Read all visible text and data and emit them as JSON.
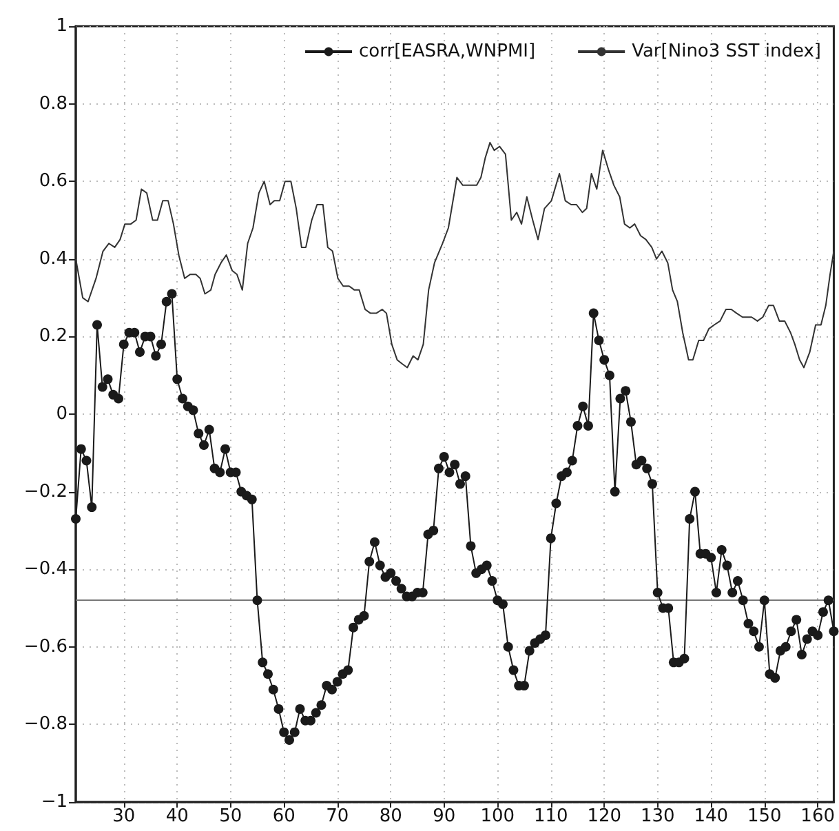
{
  "chart_data": {
    "type": "line",
    "x": [
      21,
      22,
      23,
      24,
      25,
      26,
      27,
      28,
      29,
      30,
      31,
      32,
      33,
      34,
      35,
      36,
      37,
      38,
      39,
      40,
      41,
      42,
      43,
      44,
      45,
      46,
      47,
      48,
      49,
      50,
      51,
      52,
      53,
      54,
      55,
      56,
      57,
      58,
      59,
      60,
      61,
      62,
      63,
      64,
      65,
      66,
      67,
      68,
      69,
      70,
      71,
      72,
      73,
      74,
      75,
      76,
      77,
      78,
      79,
      80,
      81,
      82,
      83,
      84,
      85,
      86,
      87,
      88,
      89,
      90,
      91,
      92,
      93,
      94,
      95,
      96,
      97,
      98,
      99,
      100,
      101,
      102,
      103,
      104,
      105,
      106,
      107,
      108,
      109,
      110,
      111,
      112,
      113,
      114,
      115,
      116,
      117,
      118,
      119,
      120,
      121,
      122,
      123,
      124,
      125,
      126,
      127,
      128,
      129,
      130,
      131,
      132,
      133,
      134,
      135,
      136,
      137,
      138,
      139,
      140,
      141,
      142,
      143,
      144,
      145,
      146,
      147,
      148,
      149,
      150,
      151,
      152,
      153,
      154,
      155,
      156,
      157,
      158,
      159,
      160,
      161,
      162,
      163
    ],
    "series": [
      {
        "name": "corr[EASRA,WNPMI]",
        "color": "#1a1a1a",
        "marker": "circle",
        "values": [
          -0.27,
          -0.09,
          -0.12,
          -0.24,
          0.23,
          0.07,
          0.09,
          0.05,
          0.04,
          0.18,
          0.21,
          0.21,
          0.16,
          0.2,
          0.2,
          0.15,
          0.18,
          0.29,
          0.31,
          0.09,
          0.04,
          0.02,
          0.01,
          -0.05,
          -0.08,
          -0.04,
          -0.14,
          -0.15,
          -0.09,
          -0.15,
          -0.15,
          -0.2,
          -0.21,
          -0.22,
          -0.48,
          -0.64,
          -0.67,
          -0.71,
          -0.76,
          -0.82,
          -0.84,
          -0.82,
          -0.76,
          -0.79,
          -0.79,
          -0.77,
          -0.75,
          -0.7,
          -0.71,
          -0.69,
          -0.67,
          -0.66,
          -0.55,
          -0.53,
          -0.52,
          -0.38,
          -0.33,
          -0.39,
          -0.42,
          -0.41,
          -0.43,
          -0.45,
          -0.47,
          -0.47,
          -0.46,
          -0.46,
          -0.31,
          -0.3,
          -0.14,
          -0.11,
          -0.15,
          -0.13,
          -0.18,
          -0.16,
          -0.34,
          -0.41,
          -0.4,
          -0.39,
          -0.43,
          -0.48,
          -0.49,
          -0.6,
          -0.66,
          -0.7,
          -0.7,
          -0.61,
          -0.59,
          -0.58,
          -0.57,
          -0.32,
          -0.23,
          -0.16,
          -0.15,
          -0.12,
          -0.03,
          0.02,
          -0.03,
          0.26,
          0.19,
          0.14,
          0.1,
          -0.2,
          0.04,
          0.06,
          -0.02,
          -0.13,
          -0.12,
          -0.14,
          -0.18,
          -0.46,
          -0.5,
          -0.5,
          -0.64,
          -0.64,
          -0.63,
          -0.27,
          -0.2,
          -0.36,
          -0.36,
          -0.37,
          -0.46,
          -0.35,
          -0.39,
          -0.46,
          -0.43,
          -0.48,
          -0.54,
          -0.56,
          -0.6,
          -0.48,
          -0.67,
          -0.68,
          -0.61,
          -0.6,
          -0.56,
          -0.53,
          -0.62,
          -0.58,
          -0.56,
          -0.57,
          -0.51,
          -0.48,
          -0.56
        ]
      },
      {
        "name": "Var[Nino3 SST index]",
        "color": "#333333",
        "marker": "none",
        "x": [
          21,
          22.3,
          23.3,
          24.8,
          26.1,
          27.2,
          28.3,
          29.3,
          30.2,
          31.3,
          32.3,
          33.3,
          34.3,
          35.4,
          36.3,
          37.3,
          38.3,
          39.3,
          40.3,
          41.4,
          42.4,
          43.5,
          44.3,
          45.2,
          46.3,
          47.1,
          48.2,
          49.2,
          50.3,
          51.2,
          52.2,
          53.2,
          54.2,
          55.3,
          56.3,
          57.4,
          58.2,
          59.2,
          60.2,
          61.3,
          62.3,
          63.3,
          64.1,
          65.2,
          66.2,
          67.3,
          68.2,
          69.1,
          70.1,
          71.1,
          72.2,
          73.2,
          74.1,
          75.2,
          76.2,
          77.3,
          78.4,
          79.2,
          80.2,
          81.2,
          82.1,
          83.1,
          84.2,
          85.1,
          86.1,
          87.1,
          88.2,
          89.7,
          90.8,
          92.4,
          93.5,
          94.8,
          96.1,
          96.9,
          97.7,
          98.6,
          99.4,
          100.4,
          101.5,
          102.6,
          103.6,
          104.5,
          105.5,
          106.6,
          107.6,
          108.8,
          110.1,
          111.6,
          112.7,
          113.8,
          114.8,
          115.9,
          116.7,
          117.6,
          118.6,
          119.7,
          120.8,
          121.8,
          122.9,
          123.8,
          124.8,
          125.7,
          126.8,
          127.8,
          128.9,
          129.8,
          130.8,
          131.9,
          132.8,
          133.7,
          134.7,
          135.8,
          136.6,
          137.7,
          138.6,
          139.6,
          140.6,
          141.7,
          142.8,
          143.8,
          144.8,
          145.9,
          147.6,
          148.7,
          149.7,
          150.8,
          151.7,
          152.8,
          153.8,
          154.9,
          155.7,
          156.6,
          157.4,
          158.5,
          159.6,
          160.6,
          161.5,
          162.3,
          163
        ],
        "values": [
          0.4,
          0.3,
          0.29,
          0.35,
          0.42,
          0.44,
          0.43,
          0.45,
          0.49,
          0.49,
          0.5,
          0.58,
          0.57,
          0.5,
          0.5,
          0.55,
          0.55,
          0.49,
          0.41,
          0.35,
          0.36,
          0.36,
          0.35,
          0.31,
          0.32,
          0.36,
          0.39,
          0.41,
          0.37,
          0.36,
          0.32,
          0.44,
          0.48,
          0.57,
          0.6,
          0.54,
          0.55,
          0.55,
          0.6,
          0.6,
          0.53,
          0.43,
          0.43,
          0.5,
          0.54,
          0.54,
          0.43,
          0.42,
          0.35,
          0.33,
          0.33,
          0.32,
          0.32,
          0.27,
          0.26,
          0.26,
          0.27,
          0.26,
          0.18,
          0.14,
          0.13,
          0.12,
          0.15,
          0.14,
          0.18,
          0.32,
          0.39,
          0.44,
          0.48,
          0.61,
          0.59,
          0.59,
          0.59,
          0.61,
          0.66,
          0.7,
          0.68,
          0.69,
          0.67,
          0.5,
          0.52,
          0.49,
          0.56,
          0.5,
          0.45,
          0.53,
          0.55,
          0.62,
          0.55,
          0.54,
          0.54,
          0.52,
          0.53,
          0.62,
          0.58,
          0.68,
          0.63,
          0.59,
          0.56,
          0.49,
          0.48,
          0.49,
          0.46,
          0.45,
          0.43,
          0.4,
          0.42,
          0.39,
          0.32,
          0.29,
          0.21,
          0.14,
          0.14,
          0.19,
          0.19,
          0.22,
          0.23,
          0.24,
          0.27,
          0.27,
          0.26,
          0.25,
          0.25,
          0.24,
          0.25,
          0.28,
          0.28,
          0.24,
          0.24,
          0.21,
          0.18,
          0.14,
          0.12,
          0.16,
          0.23,
          0.23,
          0.28,
          0.36,
          0.42
        ]
      }
    ],
    "xlim": [
      21,
      163
    ],
    "xticks": [
      30,
      40,
      50,
      60,
      70,
      80,
      90,
      100,
      110,
      120,
      130,
      140,
      150,
      160
    ],
    "ylim": [
      -1,
      1
    ],
    "yticks": [
      {
        "value": -1,
        "label": "−1"
      },
      {
        "value": -0.8,
        "label": "−0.8"
      },
      {
        "value": -0.6,
        "label": "−0.6"
      },
      {
        "value": -0.4,
        "label": "−0.4"
      },
      {
        "value": -0.2,
        "label": "−0.2"
      },
      0,
      0.2,
      0.4,
      0.6,
      0.8,
      1
    ],
    "ref_lines": [
      {
        "axis": "y",
        "value": -0.48,
        "color": "#777777"
      }
    ],
    "grid": true,
    "legend": "top right",
    "line_style": "solid"
  }
}
